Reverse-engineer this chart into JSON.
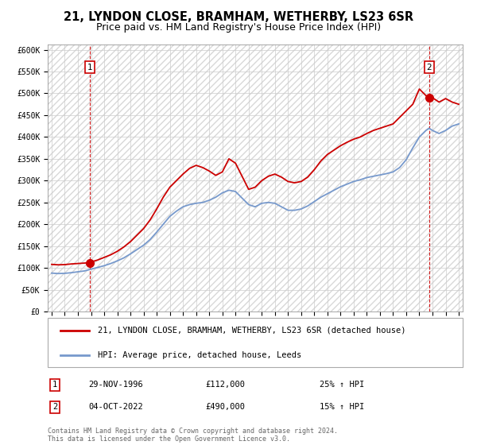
{
  "title": "21, LYNDON CLOSE, BRAMHAM, WETHERBY, LS23 6SR",
  "subtitle": "Price paid vs. HM Land Registry's House Price Index (HPI)",
  "ylabel_ticks": [
    "£0",
    "£50K",
    "£100K",
    "£150K",
    "£200K",
    "£250K",
    "£300K",
    "£350K",
    "£400K",
    "£450K",
    "£500K",
    "£550K",
    "£600K"
  ],
  "ytick_values": [
    0,
    50000,
    100000,
    150000,
    200000,
    250000,
    300000,
    350000,
    400000,
    450000,
    500000,
    550000,
    600000
  ],
  "ylim": [
    0,
    612000
  ],
  "xlim_start": 1993.7,
  "xlim_end": 2025.3,
  "xtick_years": [
    1994,
    1995,
    1996,
    1997,
    1998,
    1999,
    2000,
    2001,
    2002,
    2003,
    2004,
    2005,
    2006,
    2007,
    2008,
    2009,
    2010,
    2011,
    2012,
    2013,
    2014,
    2015,
    2016,
    2017,
    2018,
    2019,
    2020,
    2021,
    2022,
    2023,
    2024,
    2025
  ],
  "red_line_color": "#cc0000",
  "blue_line_color": "#7799cc",
  "marker_color": "#cc0000",
  "dashed_line_color": "#cc0000",
  "legend_label_red": "21, LYNDON CLOSE, BRAMHAM, WETHERBY, LS23 6SR (detached house)",
  "legend_label_blue": "HPI: Average price, detached house, Leeds",
  "point1_label": "1",
  "point1_date": "29-NOV-1996",
  "point1_price": "£112,000",
  "point1_hpi": "25% ↑ HPI",
  "point1_year": 1996.91,
  "point1_value": 112000,
  "point2_label": "2",
  "point2_date": "04-OCT-2022",
  "point2_price": "£490,000",
  "point2_hpi": "15% ↑ HPI",
  "point2_year": 2022.75,
  "point2_value": 490000,
  "footer": "Contains HM Land Registry data © Crown copyright and database right 2024.\nThis data is licensed under the Open Government Licence v3.0.",
  "title_fontsize": 10.5,
  "subtitle_fontsize": 9,
  "tick_fontsize": 7,
  "legend_fontsize": 7.5,
  "footer_fontsize": 6,
  "blue_curve": [
    [
      1994.0,
      88000
    ],
    [
      1994.5,
      87000
    ],
    [
      1995.0,
      87500
    ],
    [
      1995.5,
      89000
    ],
    [
      1996.0,
      91000
    ],
    [
      1996.5,
      93000
    ],
    [
      1997.0,
      97000
    ],
    [
      1997.5,
      101000
    ],
    [
      1998.0,
      105000
    ],
    [
      1998.5,
      110000
    ],
    [
      1999.0,
      116000
    ],
    [
      1999.5,
      123000
    ],
    [
      2000.0,
      132000
    ],
    [
      2000.5,
      142000
    ],
    [
      2001.0,
      152000
    ],
    [
      2001.5,
      165000
    ],
    [
      2002.0,
      182000
    ],
    [
      2002.5,
      200000
    ],
    [
      2003.0,
      218000
    ],
    [
      2003.5,
      230000
    ],
    [
      2004.0,
      240000
    ],
    [
      2004.5,
      245000
    ],
    [
      2005.0,
      248000
    ],
    [
      2005.5,
      250000
    ],
    [
      2006.0,
      255000
    ],
    [
      2006.5,
      262000
    ],
    [
      2007.0,
      272000
    ],
    [
      2007.5,
      278000
    ],
    [
      2008.0,
      275000
    ],
    [
      2008.5,
      260000
    ],
    [
      2009.0,
      245000
    ],
    [
      2009.5,
      240000
    ],
    [
      2010.0,
      248000
    ],
    [
      2010.5,
      250000
    ],
    [
      2011.0,
      248000
    ],
    [
      2011.5,
      240000
    ],
    [
      2012.0,
      232000
    ],
    [
      2012.5,
      232000
    ],
    [
      2013.0,
      235000
    ],
    [
      2013.5,
      242000
    ],
    [
      2014.0,
      252000
    ],
    [
      2014.5,
      262000
    ],
    [
      2015.0,
      270000
    ],
    [
      2015.5,
      278000
    ],
    [
      2016.0,
      286000
    ],
    [
      2016.5,
      292000
    ],
    [
      2017.0,
      298000
    ],
    [
      2017.5,
      302000
    ],
    [
      2018.0,
      307000
    ],
    [
      2018.5,
      310000
    ],
    [
      2019.0,
      313000
    ],
    [
      2019.5,
      316000
    ],
    [
      2020.0,
      320000
    ],
    [
      2020.5,
      330000
    ],
    [
      2021.0,
      348000
    ],
    [
      2021.5,
      375000
    ],
    [
      2022.0,
      400000
    ],
    [
      2022.5,
      415000
    ],
    [
      2022.75,
      420000
    ],
    [
      2023.0,
      415000
    ],
    [
      2023.5,
      408000
    ],
    [
      2024.0,
      415000
    ],
    [
      2024.5,
      425000
    ],
    [
      2025.0,
      430000
    ]
  ],
  "red_curve": [
    [
      1994.0,
      108000
    ],
    [
      1994.5,
      107000
    ],
    [
      1995.0,
      107500
    ],
    [
      1995.5,
      109000
    ],
    [
      1996.0,
      110000
    ],
    [
      1996.5,
      111000
    ],
    [
      1996.91,
      112000
    ],
    [
      1997.0,
      113500
    ],
    [
      1997.5,
      118000
    ],
    [
      1998.0,
      124000
    ],
    [
      1998.5,
      130000
    ],
    [
      1999.0,
      138000
    ],
    [
      1999.5,
      148000
    ],
    [
      2000.0,
      160000
    ],
    [
      2000.5,
      175000
    ],
    [
      2001.0,
      190000
    ],
    [
      2001.5,
      210000
    ],
    [
      2002.0,
      235000
    ],
    [
      2002.5,
      262000
    ],
    [
      2003.0,
      285000
    ],
    [
      2003.5,
      300000
    ],
    [
      2004.0,
      315000
    ],
    [
      2004.5,
      328000
    ],
    [
      2005.0,
      335000
    ],
    [
      2005.5,
      330000
    ],
    [
      2006.0,
      322000
    ],
    [
      2006.5,
      312000
    ],
    [
      2007.0,
      320000
    ],
    [
      2007.5,
      350000
    ],
    [
      2008.0,
      340000
    ],
    [
      2008.5,
      310000
    ],
    [
      2009.0,
      280000
    ],
    [
      2009.5,
      285000
    ],
    [
      2010.0,
      300000
    ],
    [
      2010.5,
      310000
    ],
    [
      2011.0,
      315000
    ],
    [
      2011.5,
      308000
    ],
    [
      2012.0,
      298000
    ],
    [
      2012.5,
      295000
    ],
    [
      2013.0,
      298000
    ],
    [
      2013.5,
      308000
    ],
    [
      2014.0,
      325000
    ],
    [
      2014.5,
      345000
    ],
    [
      2015.0,
      360000
    ],
    [
      2015.5,
      370000
    ],
    [
      2016.0,
      380000
    ],
    [
      2016.5,
      388000
    ],
    [
      2017.0,
      395000
    ],
    [
      2017.5,
      400000
    ],
    [
      2018.0,
      408000
    ],
    [
      2018.5,
      415000
    ],
    [
      2019.0,
      420000
    ],
    [
      2019.5,
      425000
    ],
    [
      2020.0,
      430000
    ],
    [
      2020.5,
      445000
    ],
    [
      2021.0,
      460000
    ],
    [
      2021.5,
      475000
    ],
    [
      2022.0,
      510000
    ],
    [
      2022.5,
      495000
    ],
    [
      2022.75,
      490000
    ],
    [
      2023.0,
      490000
    ],
    [
      2023.5,
      480000
    ],
    [
      2024.0,
      488000
    ],
    [
      2024.5,
      480000
    ],
    [
      2025.0,
      475000
    ]
  ]
}
